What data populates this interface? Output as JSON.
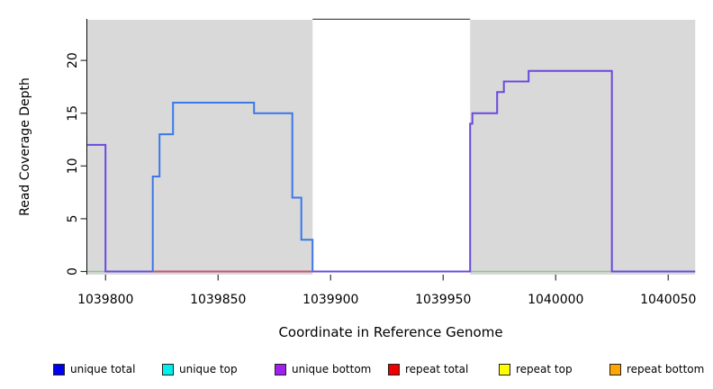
{
  "chart_data": {
    "type": "step-line",
    "title": "",
    "xlabel": "Coordinate in Reference Genome",
    "ylabel": "Read Coverage Depth",
    "xlim": [
      1039792,
      1040062
    ],
    "ylim": [
      0,
      24
    ],
    "x_ticks": [
      1039800,
      1039850,
      1039900,
      1039950,
      1040000,
      1040050
    ],
    "y_ticks": [
      0,
      5,
      10,
      15,
      20
    ],
    "grid": "off",
    "shaded_regions": [
      {
        "name": "repeat-region-left",
        "x0": 1039792,
        "x1": 1039892,
        "color": "#d9d9d9"
      },
      {
        "name": "repeat-region-right",
        "x0": 1039962,
        "x1": 1040062,
        "color": "#d9d9d9"
      }
    ],
    "series": [
      {
        "name": "baseline-zero",
        "color": "#85c985",
        "width": 1.6,
        "points": [
          [
            1039792,
            0
          ],
          [
            1040062,
            0
          ]
        ]
      },
      {
        "name": "unique bottom",
        "color": "#6a49de",
        "width": 2,
        "points": [
          [
            1039792,
            12
          ],
          [
            1039800,
            12
          ],
          [
            1039800,
            0
          ],
          [
            1039962,
            0
          ],
          [
            1039962,
            14
          ],
          [
            1039963,
            14
          ],
          [
            1039963,
            15
          ],
          [
            1039974,
            15
          ],
          [
            1039974,
            17
          ],
          [
            1039977,
            17
          ],
          [
            1039977,
            18
          ],
          [
            1039988,
            18
          ],
          [
            1039988,
            19
          ],
          [
            1040025,
            19
          ],
          [
            1040025,
            0
          ],
          [
            1040062,
            0
          ]
        ]
      },
      {
        "name": "repeat total",
        "color": "#e25050",
        "width": 1.8,
        "points": [
          [
            1039821,
            0
          ],
          [
            1039892,
            0
          ]
        ]
      },
      {
        "name": "unique total",
        "color": "#3b78e8",
        "width": 2,
        "points": [
          [
            1039821,
            0
          ],
          [
            1039821,
            9
          ],
          [
            1039824,
            9
          ],
          [
            1039824,
            13
          ],
          [
            1039830,
            13
          ],
          [
            1039830,
            16
          ],
          [
            1039866,
            16
          ],
          [
            1039866,
            15
          ],
          [
            1039883,
            15
          ],
          [
            1039883,
            7
          ],
          [
            1039887,
            7
          ],
          [
            1039887,
            3
          ],
          [
            1039892,
            3
          ],
          [
            1039892,
            0
          ]
        ]
      }
    ],
    "legend": {
      "position": "bottom",
      "items": [
        {
          "label": "unique total",
          "color": "#0000ee"
        },
        {
          "label": "unique top",
          "color": "#00eeee"
        },
        {
          "label": "unique bottom",
          "color": "#a020f0"
        },
        {
          "label": "repeat total",
          "color": "#ee0000"
        },
        {
          "label": "repeat top",
          "color": "#ffff00"
        },
        {
          "label": "repeat bottom",
          "color": "#ffa500"
        }
      ]
    }
  }
}
